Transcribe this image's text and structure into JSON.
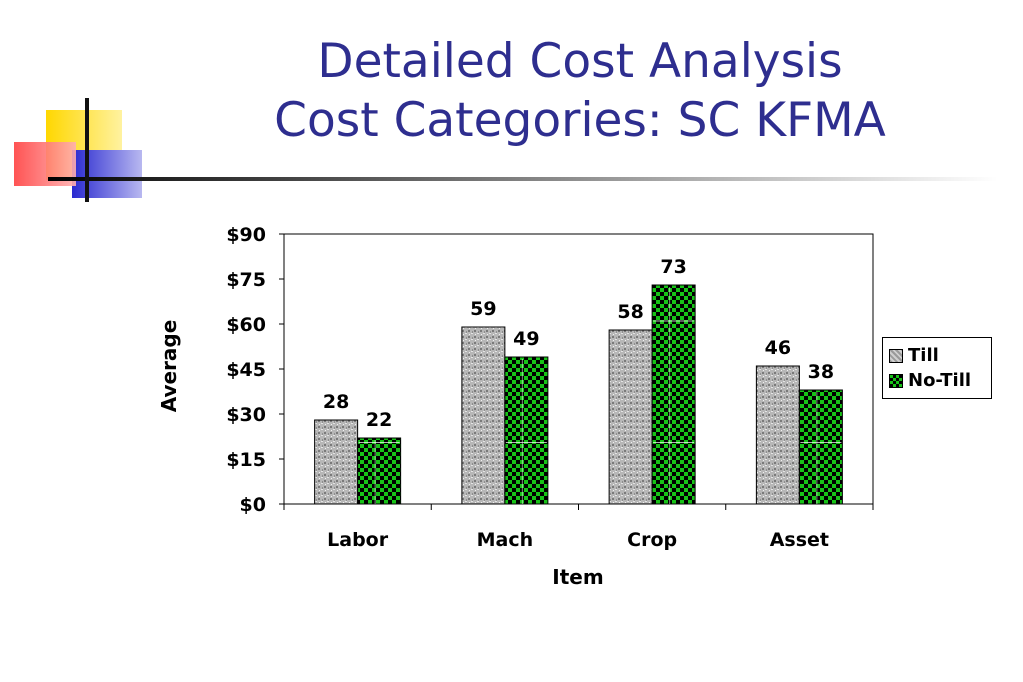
{
  "slide": {
    "title_line1": "Detailed Cost Analysis",
    "title_line2": "Cost Categories: SC KFMA"
  },
  "colors": {
    "title": "#2e2e8f",
    "deco_yellow": "#ffd700",
    "deco_red": "#ff3b3b",
    "deco_blue": "#2a2ad0",
    "no_till_green": "#17c317",
    "till_gray": "#b4b4b4"
  },
  "chart_data": {
    "type": "bar",
    "categories": [
      "Labor",
      "Mach",
      "Crop",
      "Asset"
    ],
    "series": [
      {
        "name": "Till",
        "values": [
          28,
          59,
          58,
          46
        ],
        "pattern": "gray-speckle"
      },
      {
        "name": "No-Till",
        "values": [
          22,
          49,
          73,
          38
        ],
        "pattern": "green-checker"
      }
    ],
    "data_labels": {
      "Till": [
        "28",
        "59",
        "58",
        "46"
      ],
      "No-Till": [
        "22",
        "49",
        "73",
        "38"
      ]
    },
    "ylim": [
      0,
      90
    ],
    "yticks": [
      0,
      15,
      30,
      45,
      60,
      75,
      90
    ],
    "ytick_labels": [
      "$0",
      "$15",
      "$30",
      "$45",
      "$60",
      "$75",
      "$90"
    ],
    "xlabel": "Item",
    "ylabel": "Average",
    "legend": {
      "position": "right",
      "items": [
        "Till",
        "No-Till"
      ]
    },
    "grid": false
  }
}
